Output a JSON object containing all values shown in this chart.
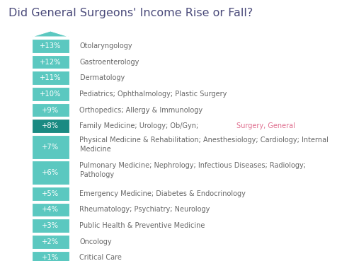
{
  "title": "Did General Surgeons' Income Rise or Fall?",
  "title_color": "#4a4a7a",
  "title_fontsize": 11.5,
  "background_color": "#ffffff",
  "rows": [
    {
      "pct": "+13%",
      "label": "Otolaryngology",
      "highlight": false,
      "wrap": false
    },
    {
      "pct": "+12%",
      "label": "Gastroenterology",
      "highlight": false,
      "wrap": false
    },
    {
      "pct": "+11%",
      "label": "Dermatology",
      "highlight": false,
      "wrap": false
    },
    {
      "pct": "+10%",
      "label": "Pediatrics; Ophthalmology; Plastic Surgery",
      "highlight": false,
      "wrap": false
    },
    {
      "pct": "+9%",
      "label": "Orthopedics; Allergy & Immunology",
      "highlight": false,
      "wrap": false
    },
    {
      "pct": "+8%",
      "label": "Family Medicine; Urology; Ob/Gyn; Surgery, General",
      "highlight": true,
      "wrap": false
    },
    {
      "pct": "+7%",
      "label": "Physical Medicine & Rehabilitation; Anesthesiology; Cardiology; Internal\nMedicine",
      "highlight": false,
      "wrap": true
    },
    {
      "pct": "+6%",
      "label": "Pulmonary Medicine; Nephrology; Infectious Diseases; Radiology;\nPathology",
      "highlight": false,
      "wrap": true
    },
    {
      "pct": "+5%",
      "label": "Emergency Medicine; Diabetes & Endocrinology",
      "highlight": false,
      "wrap": false
    },
    {
      "pct": "+4%",
      "label": "Rheumatology; Psychiatry; Neurology",
      "highlight": false,
      "wrap": false
    },
    {
      "pct": "+3%",
      "label": "Public Health & Preventive Medicine",
      "highlight": false,
      "wrap": false
    },
    {
      "pct": "+2%",
      "label": "Oncology",
      "highlight": false,
      "wrap": false
    },
    {
      "pct": "+1%",
      "label": "Critical Care",
      "highlight": false,
      "wrap": false
    }
  ],
  "highlight_label_normal": "Family Medicine; Urology; Ob/Gyn; ",
  "highlight_label_red": "Surgery, General",
  "bar_color_light": "#5bc8c0",
  "bar_color_dark": "#1a8a82",
  "text_color_bar": "#ffffff",
  "text_color_label": "#666666",
  "text_color_red": "#e07090",
  "label_fontsize": 7.0,
  "pct_fontsize": 7.2
}
